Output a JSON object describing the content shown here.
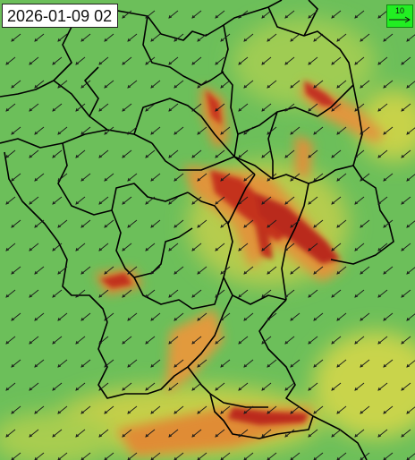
{
  "map": {
    "timestamp": "2026-01-09 02",
    "wind_legend": {
      "value": "10",
      "icon": "wind-arrow-icon"
    },
    "colors": {
      "low": "#6cbf5a",
      "mid": "#d8d24a",
      "high": "#e07a30",
      "max": "#b8281e",
      "borders": "#000000"
    }
  }
}
